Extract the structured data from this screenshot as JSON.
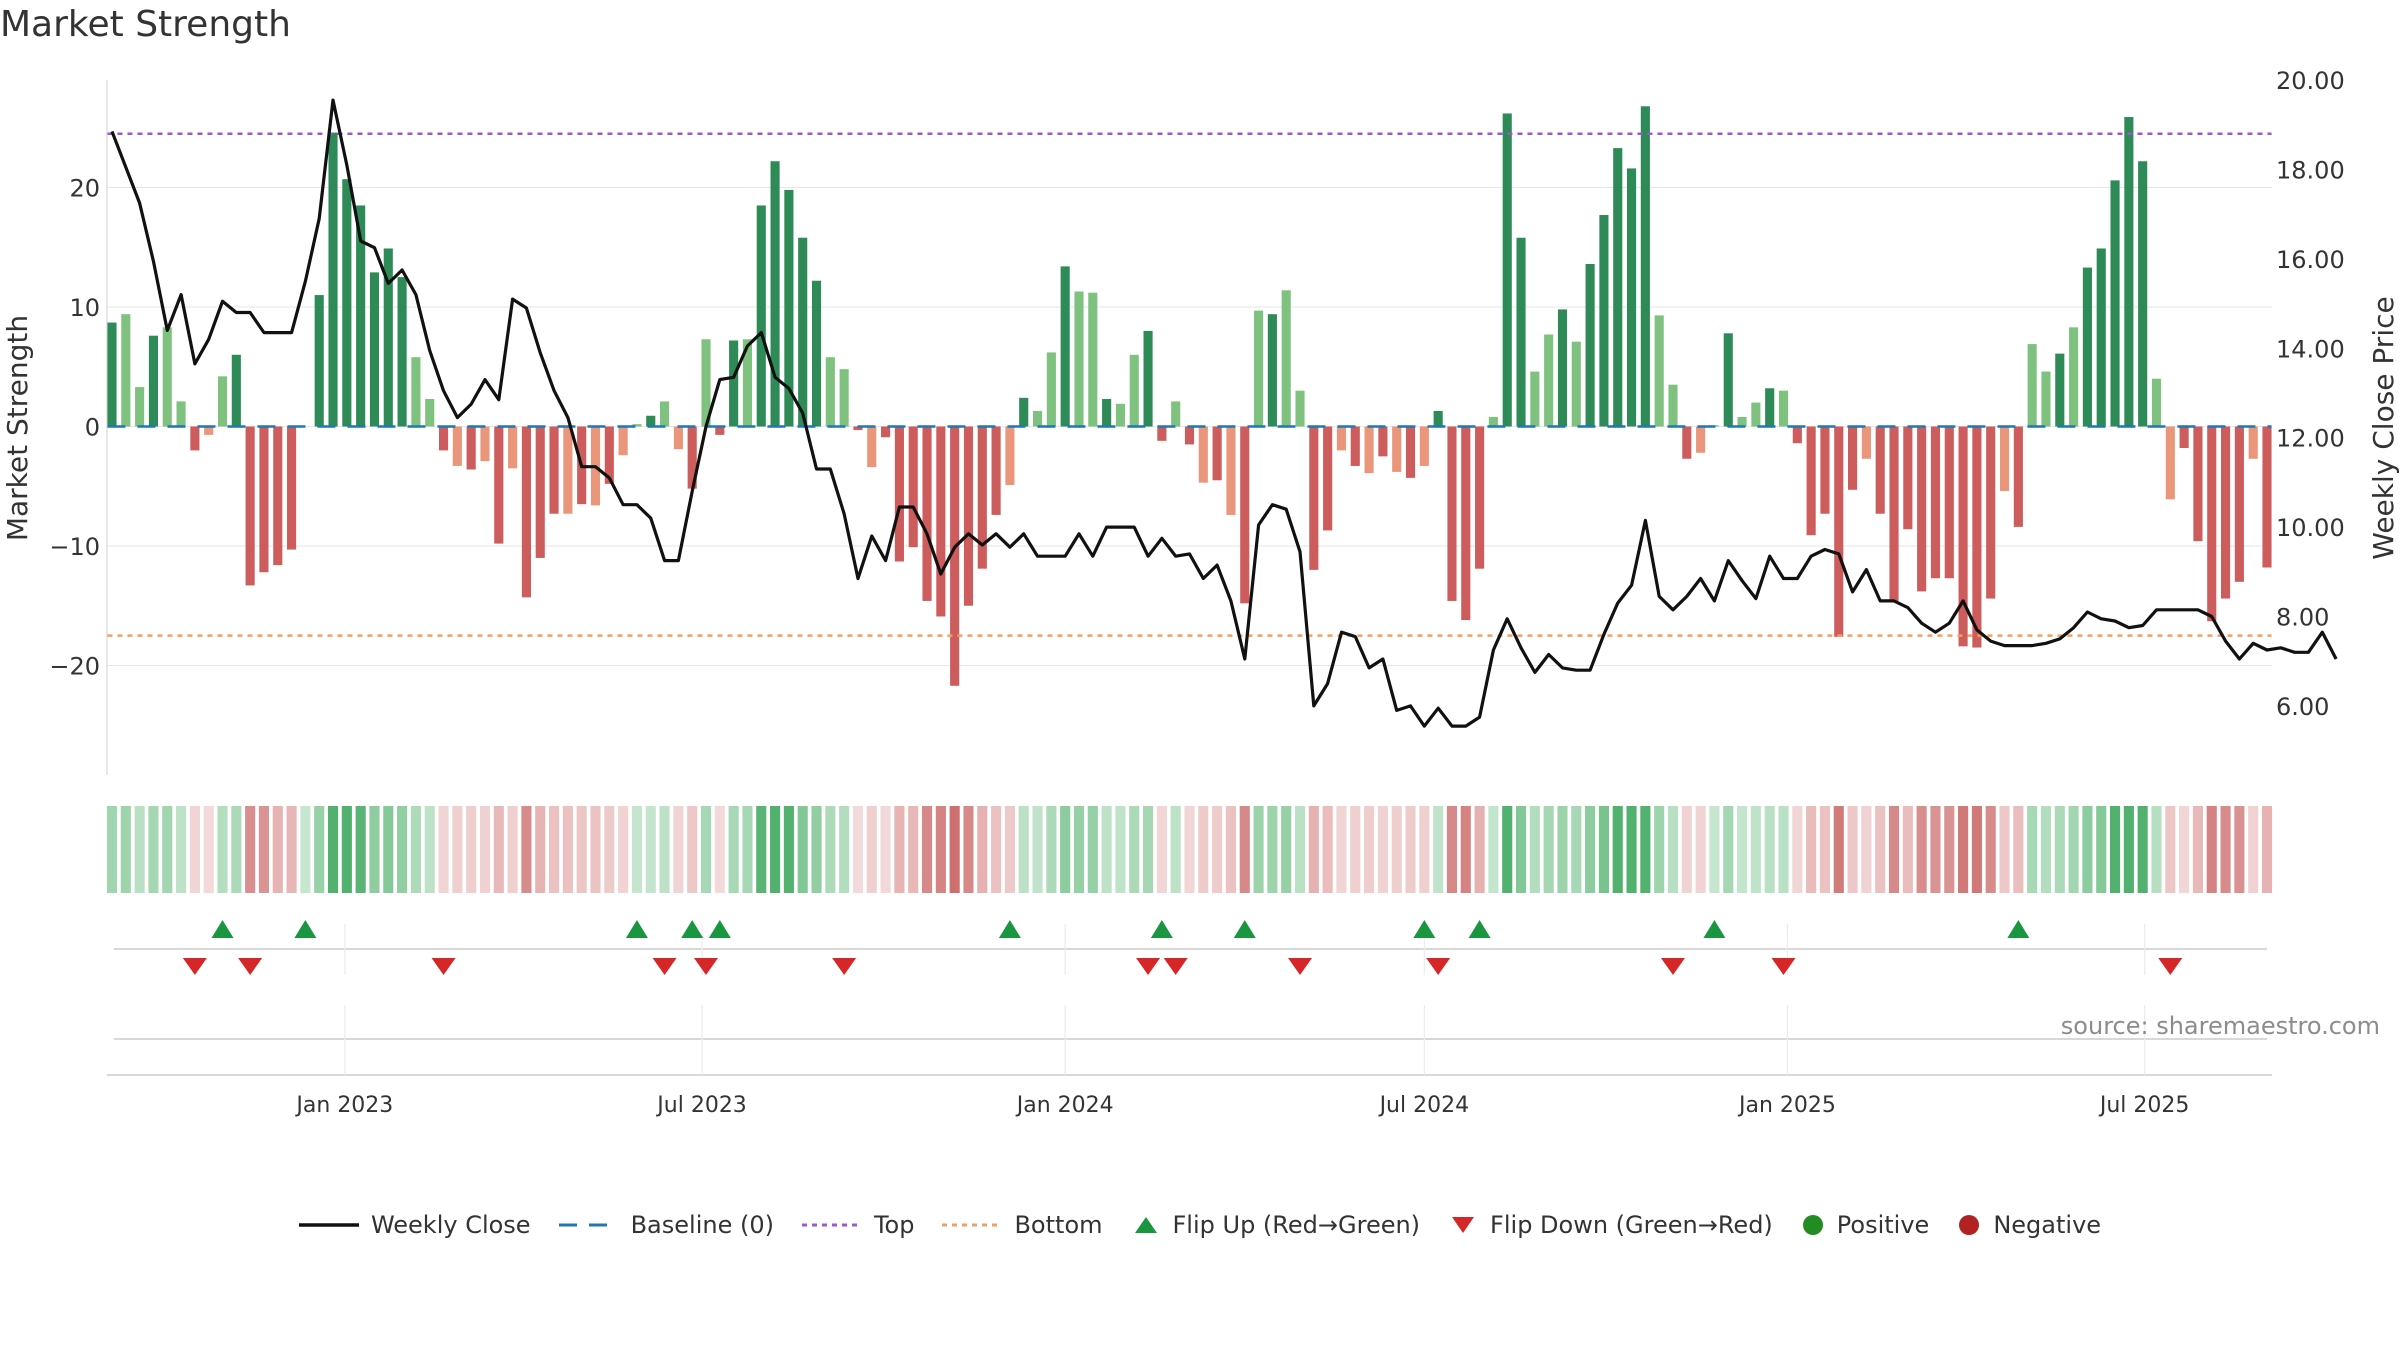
{
  "title": "Market Strength",
  "source": "source: sharemaestro.com",
  "chart_data": {
    "type": "bar",
    "title": "Market Strength",
    "ylabel_left": "Market Strength",
    "ylabel_right": "Weekly Close Price",
    "ylim_left": [
      -29,
      29
    ],
    "ylim_right": [
      4.5,
      20.0
    ],
    "left_ticks": [
      20,
      10,
      0,
      -10,
      -20
    ],
    "left_tick_labels": [
      "20",
      "10",
      "0",
      "−10",
      "−20"
    ],
    "right_ticks": [
      20,
      18,
      16,
      14,
      12,
      10,
      8,
      6
    ],
    "right_tick_labels": [
      "20.00",
      "18.00",
      "16.00",
      "14.00",
      "12.00",
      "10.00",
      "8.00",
      "6.00"
    ],
    "x_start": "2022-09-05",
    "x_ticks": [
      "2023-01-01",
      "2023-07-01",
      "2024-01-01",
      "2024-07-01",
      "2025-01-01",
      "2025-07-01"
    ],
    "x_tick_labels": [
      "Jan 2023",
      "Jul 2023",
      "Jan 2024",
      "Jul 2024",
      "Jan 2025",
      "Jul 2025"
    ],
    "top_threshold": 24.5,
    "bottom_threshold": -17.5,
    "grid": true,
    "legend_position": "bottom",
    "colors": {
      "pos_dark": "#2e8b57",
      "pos_light": "#7fc27f",
      "neg_dark": "#cd5c5c",
      "neg_light": "#e9967a",
      "top": "#9b59d0",
      "bottom": "#f0a060",
      "baseline": "#1f77b4",
      "close": "#111111",
      "flip_up": "#1a9641",
      "flip_down": "#d62728",
      "positive": "#228b22",
      "negative": "#b22222"
    },
    "series": [
      {
        "name": "Market Strength",
        "values": [
          8.7,
          9.4,
          3.3,
          7.6,
          8.3,
          2.1,
          -2.0,
          -0.7,
          4.2,
          6.0,
          -13.3,
          -12.2,
          -11.6,
          -10.3,
          0,
          11.0,
          24.6,
          20.7,
          18.5,
          12.9,
          14.9,
          12.5,
          5.8,
          2.3,
          -2.0,
          -3.3,
          -3.6,
          -2.9,
          -9.8,
          -3.5,
          -14.3,
          -11.0,
          -7.3,
          -7.3,
          -6.5,
          -6.6,
          -4.8,
          -2.4,
          0.2,
          0.9,
          2.1,
          -1.9,
          -5.2,
          7.3,
          -0.7,
          7.2,
          7.3,
          18.5,
          22.2,
          19.8,
          15.8,
          12.2,
          5.8,
          4.8,
          -0.3,
          -3.4,
          -0.9,
          -11.3,
          -10.1,
          -14.6,
          -15.9,
          -21.7,
          -15.0,
          -11.9,
          -7.4,
          -4.9,
          2.4,
          1.3,
          6.2,
          13.4,
          11.3,
          11.2,
          2.3,
          1.9,
          6.0,
          8.0,
          -1.2,
          2.1,
          -1.5,
          -4.7,
          -4.5,
          -7.4,
          -14.8,
          9.7,
          9.4,
          11.4,
          3.0,
          -12.0,
          -8.7,
          -2.0,
          -3.3,
          -3.9,
          -2.5,
          -3.8,
          -4.3,
          -3.3,
          1.3,
          -14.6,
          -16.2,
          -11.9,
          0.8,
          26.2,
          15.8,
          4.6,
          7.7,
          9.8,
          7.1,
          13.6,
          17.7,
          23.3,
          21.6,
          26.8,
          9.3,
          3.5,
          -2.7,
          -2.2,
          0.1,
          7.8,
          0.8,
          2.0,
          3.2,
          3.0,
          -1.4,
          -9.1,
          -7.3,
          -17.6,
          -5.3,
          -2.7,
          -7.3,
          -14.6,
          -8.6,
          -13.8,
          -12.7,
          -12.7,
          -18.4,
          -18.5,
          -14.4,
          -5.4,
          -8.4,
          6.9,
          4.6,
          6.1,
          8.3,
          13.3,
          14.9,
          20.6,
          25.9,
          22.2,
          4.0,
          -6.1,
          -1.8,
          -9.6,
          -16.3,
          -14.4,
          -13.0,
          -2.7,
          -11.8
        ]
      },
      {
        "name": "Weekly Close",
        "values": [
          18.85,
          18.05,
          17.25,
          15.95,
          14.4,
          15.2,
          13.65,
          14.2,
          15.05,
          14.8,
          14.8,
          14.35,
          14.35,
          14.35,
          15.5,
          16.9,
          19.55,
          18.1,
          16.4,
          16.25,
          15.45,
          15.75,
          15.2,
          13.95,
          13.05,
          12.45,
          12.75,
          13.3,
          12.85,
          15.1,
          14.9,
          13.9,
          13.05,
          12.45,
          11.35,
          11.35,
          11.1,
          10.5,
          10.5,
          10.2,
          9.25,
          9.25,
          10.8,
          12.25,
          13.3,
          13.35,
          14.05,
          14.35,
          13.35,
          13.1,
          12.55,
          11.3,
          11.3,
          10.3,
          8.85,
          9.8,
          9.25,
          10.45,
          10.45,
          9.85,
          8.95,
          9.55,
          9.85,
          9.6,
          9.85,
          9.55,
          9.85,
          9.35,
          9.35,
          9.35,
          9.85,
          9.35,
          10.0,
          10.0,
          10.0,
          9.35,
          9.75,
          9.35,
          9.4,
          8.85,
          9.15,
          8.35,
          7.05,
          10.05,
          10.5,
          10.4,
          9.45,
          6.0,
          6.5,
          7.65,
          7.55,
          6.85,
          7.05,
          5.9,
          6.0,
          5.55,
          5.95,
          5.55,
          5.55,
          5.75,
          7.25,
          7.95,
          7.3,
          6.75,
          7.15,
          6.85,
          6.8,
          6.8,
          7.6,
          8.3,
          8.7,
          10.15,
          8.45,
          8.15,
          8.45,
          8.85,
          8.35,
          9.25,
          8.8,
          8.4,
          9.35,
          8.85,
          8.85,
          9.35,
          9.5,
          9.4,
          8.55,
          9.05,
          8.35,
          8.35,
          8.2,
          7.85,
          7.65,
          7.85,
          8.35,
          7.7,
          7.45,
          7.35,
          7.35,
          7.35,
          7.4,
          7.5,
          7.75,
          8.1,
          7.95,
          7.9,
          7.75,
          7.8,
          8.15,
          8.15,
          8.15,
          8.15,
          8.0,
          7.45,
          7.05,
          7.4,
          7.25,
          7.3,
          7.2,
          7.2,
          7.65,
          7.05
        ]
      }
    ],
    "flip_up_weeks": [
      8,
      14,
      38,
      42,
      44,
      65,
      76,
      82,
      95,
      99,
      116,
      138
    ],
    "flip_down_weeks": [
      6,
      10,
      24,
      40,
      43,
      53,
      75,
      77,
      86,
      96,
      113,
      121,
      149
    ],
    "legend": [
      {
        "label": "Weekly Close",
        "icon": "line-icon"
      },
      {
        "label": "Baseline (0)",
        "icon": "dashed-line-icon"
      },
      {
        "label": "Top",
        "icon": "dotted-line-icon"
      },
      {
        "label": "Bottom",
        "icon": "dotted-line-icon"
      },
      {
        "label": "Flip Up (Red→Green)",
        "icon": "triangle-up-icon"
      },
      {
        "label": "Flip Down (Green→Red)",
        "icon": "triangle-down-icon"
      },
      {
        "label": "Positive",
        "icon": "circle-icon"
      },
      {
        "label": "Negative",
        "icon": "circle-icon"
      }
    ]
  }
}
